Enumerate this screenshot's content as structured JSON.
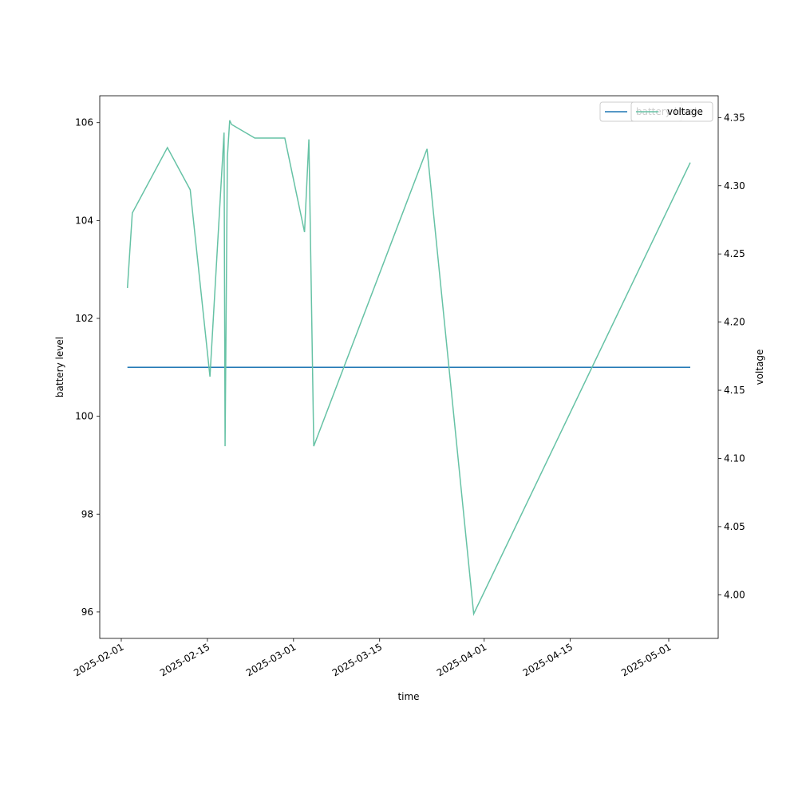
{
  "chart_data": {
    "type": "line",
    "xlabel": "time",
    "ylabel": "battery level",
    "y2label": "voltage",
    "x": [
      "2025-02-02T00:00",
      "2025-02-02T19:00",
      "2025-02-08T12:00",
      "2025-02-12T05:00",
      "2025-02-15T10:00",
      "2025-02-17T17:00",
      "2025-02-17T21:00",
      "2025-02-18T06:00",
      "2025-02-18T15:00",
      "2025-02-18T22:00",
      "2025-02-22T17:00",
      "2025-02-27T14:00",
      "2025-03-02T19:00",
      "2025-03-03T12:00",
      "2025-03-04T07:00",
      "2025-03-22T17:00",
      "2025-03-30T07:00",
      "2025-05-04T12:00"
    ],
    "series": [
      {
        "name": "battery level",
        "color": "#1f77b4",
        "axis": "y",
        "values": [
          101,
          101,
          101,
          101,
          101,
          101,
          101,
          101,
          101,
          101,
          101,
          101,
          101,
          101,
          101,
          101,
          101,
          101
        ]
      },
      {
        "name": "voltage",
        "color": "#66c2a5",
        "axis": "y2",
        "values": [
          4.225,
          4.28,
          4.328,
          4.297,
          4.16,
          4.339,
          4.109,
          4.321,
          4.348,
          4.345,
          4.335,
          4.335,
          4.266,
          4.334,
          4.109,
          4.327,
          3.986,
          4.317
        ]
      }
    ],
    "xlim": [
      "2025-01-28T12:00",
      "2025-05-09T01:00"
    ],
    "xticks": [
      "2025-02-01",
      "2025-02-15",
      "2025-03-01",
      "2025-03-15",
      "2025-04-01",
      "2025-04-15",
      "2025-05-01"
    ],
    "ylim": [
      95.46,
      106.55
    ],
    "yticks": [
      96,
      98,
      100,
      102,
      104,
      106
    ],
    "y2lim": [
      3.968,
      4.366
    ],
    "y2ticks": [
      {
        "value": 4,
        "label": "4.00"
      },
      4.05,
      {
        "value": 4.1,
        "label": "4.10"
      },
      4.15,
      {
        "value": 4.2,
        "label": "4.20"
      },
      4.25,
      {
        "value": 4.3,
        "label": "4.30"
      },
      4.35
    ],
    "legend": "upper right"
  }
}
